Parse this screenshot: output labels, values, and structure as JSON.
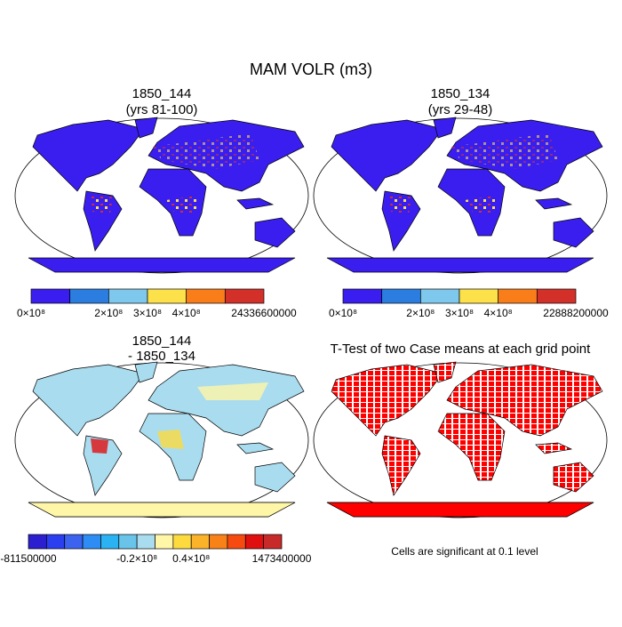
{
  "title": "MAM VOLR (m3)",
  "panels": [
    {
      "title": [
        "1850_144",
        "(yrs 81-100)"
      ],
      "colorbar": {
        "colors": [
          "#3a1ef0",
          "#2b7de0",
          "#7ec8ee",
          "#fde14a",
          "#f97d18",
          "#d4302a"
        ],
        "labels": [
          "0×10⁸",
          "2×10⁸",
          "3×10⁸",
          "4×10⁸",
          "24336600000"
        ]
      }
    },
    {
      "title": [
        "1850_134",
        "(yrs 29-48)"
      ],
      "colorbar": {
        "colors": [
          "#3a1ef0",
          "#2b7de0",
          "#7ec8ee",
          "#fde14a",
          "#f97d18",
          "#d4302a"
        ],
        "labels": [
          "0×10⁸",
          "2×10⁸",
          "3×10⁸",
          "4×10⁸",
          "22888200000"
        ]
      }
    },
    {
      "title": [
        "1850_144",
        "- 1850_134"
      ],
      "colorbar": {
        "colors": [
          "#2c1fd0",
          "#2b3ff0",
          "#3b63f0",
          "#2e8cf5",
          "#2bb2f2",
          "#6ac4ea",
          "#a9dcef",
          "#fff6a8",
          "#fddb3e",
          "#fbb32a",
          "#f98218",
          "#f64a10",
          "#e01010",
          "#c82a2a"
        ],
        "labels": [
          "-811500000",
          "-0.2×10⁸",
          "0.4×10⁸",
          "1473400000"
        ]
      }
    },
    {
      "title": [
        "T-Test of two Case means at each grid point"
      ]
    }
  ],
  "footnote": "Cells are significant at 0.1 level"
}
